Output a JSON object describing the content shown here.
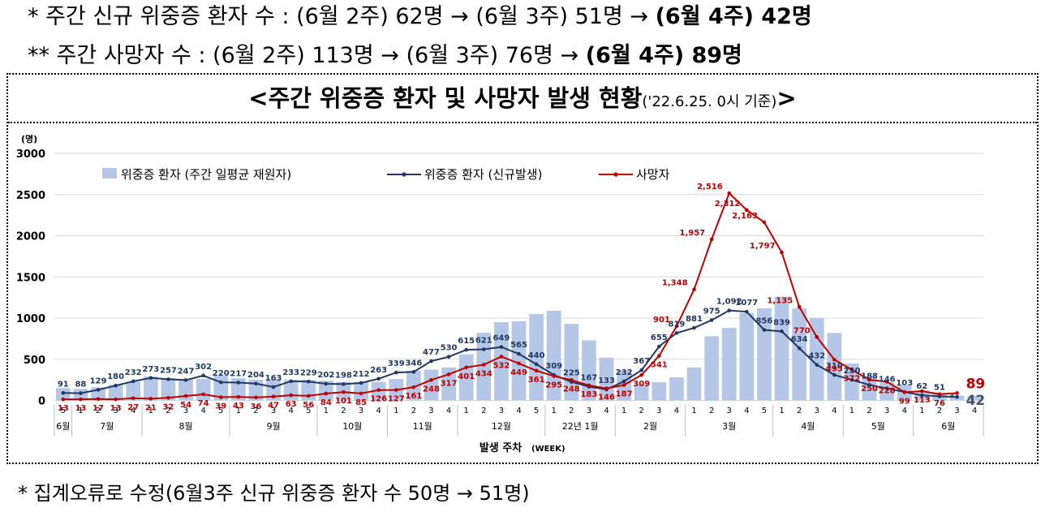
{
  "header": {
    "line1_prefix": "* 주간 신규 위중증 환자 수 : (6월 2주) 62명 → (6월 3주) 51명 → ",
    "line1_bold": "(6월 4주) 42명",
    "line2_prefix": "** 주간 사망자 수 : (6월 2주) 113명 → (6월 3주) 76명 → ",
    "line2_bold": "(6월 4주) 89명"
  },
  "box_title": {
    "main": "<주간 위중증 환자 및 사망자 발생 현황",
    "sub": "('22.6.25. 0시 기준)",
    "end": ">"
  },
  "footnote": "* 집계오류로 수정(6월3주 신규 위중증 환자 수 50명 → 51명)",
  "colors": {
    "bar": "#b4c7e7",
    "severe_line": "#1f3864",
    "death_line": "#c00000",
    "title_last_severe": "#44546a"
  },
  "chart_data": {
    "type": "bar+line",
    "title": "주간 위중증 환자 및 사망자 발생 현황",
    "ylabel": "(명)",
    "xlabel": "발생 주차",
    "xlabel_suffix": "(WEEK)",
    "ylim": [
      0,
      3000
    ],
    "yticks": [
      0,
      500,
      1000,
      1500,
      2000,
      2500,
      3000
    ],
    "legend": {
      "bar": "위중증 환자 (주간 일평균 재원자)",
      "severe": "위중증 환자 (신규발생)",
      "death": "사망자"
    },
    "week_labels": [
      "5",
      "1",
      "2",
      "3",
      "4",
      "1",
      "2",
      "3",
      "4",
      "5",
      "1",
      "2",
      "3",
      "4",
      "5",
      "1",
      "2",
      "3",
      "4",
      "1",
      "2",
      "3",
      "4",
      "1",
      "2",
      "3",
      "4",
      "5",
      "1",
      "2",
      "3",
      "4",
      "1",
      "2",
      "3",
      "4",
      "1",
      "2",
      "3",
      "4",
      "5",
      "1",
      "2",
      "3",
      "4",
      "1",
      "2",
      "3",
      "4",
      "1",
      "2",
      "3",
      "4"
    ],
    "months": [
      {
        "label": "6월",
        "start": 0,
        "end": 0
      },
      {
        "label": "7월",
        "start": 1,
        "end": 4
      },
      {
        "label": "8월",
        "start": 5,
        "end": 9
      },
      {
        "label": "9월",
        "start": 10,
        "end": 14
      },
      {
        "label": "10월",
        "start": 15,
        "end": 18
      },
      {
        "label": "11월",
        "start": 19,
        "end": 22
      },
      {
        "label": "12월",
        "start": 23,
        "end": 27
      },
      {
        "label": "22년 1월",
        "start": 28,
        "end": 31
      },
      {
        "label": "2월",
        "start": 32,
        "end": 35
      },
      {
        "label": "3월",
        "start": 36,
        "end": 40
      },
      {
        "label": "4월",
        "start": 41,
        "end": 44
      },
      {
        "label": "5월",
        "start": 45,
        "end": 48
      },
      {
        "label": "6월",
        "start": 49,
        "end": 52
      }
    ],
    "series": [
      {
        "name": "위중증 환자 (주간 일평균 재원자)",
        "kind": "bar",
        "values": [
          150,
          140,
          160,
          190,
          230,
          290,
          270,
          260,
          260,
          300,
          270,
          250,
          260,
          250,
          250,
          240,
          225,
          225,
          225,
          260,
          360,
          375,
          400,
          560,
          820,
          950,
          960,
          1050,
          1090,
          930,
          730,
          520,
          360,
          200,
          220,
          280,
          400,
          780,
          880,
          1060,
          1120,
          1260,
          1120,
          1000,
          820,
          450,
          300,
          220,
          180,
          120,
          90,
          60,
          55
        ]
      },
      {
        "name": "위중증 환자 (신규발생)",
        "kind": "line",
        "values": [
          91,
          88,
          129,
          180,
          232,
          273,
          257,
          247,
          302,
          220,
          217,
          204,
          163,
          233,
          229,
          202,
          198,
          212,
          263,
          339,
          346,
          477,
          530,
          615,
          621,
          649,
          565,
          440,
          309,
          225,
          167,
          133,
          232,
          367,
          655,
          819,
          881,
          975,
          1092,
          1077,
          856,
          839,
          634,
          432,
          310,
          250,
          188,
          146,
          103,
          62,
          51,
          42,
          null
        ],
        "labels": [
          "91",
          "88",
          "129",
          "180",
          "232",
          "273",
          "257",
          "247",
          "302",
          "220",
          "217",
          "204",
          "163",
          "233",
          "229",
          "202",
          "198",
          "212",
          "263",
          "339",
          "346",
          "477",
          "530",
          "615",
          "621",
          "649",
          "565",
          "440",
          "309",
          "225",
          "167",
          "133",
          "232",
          "367",
          "655",
          "819",
          "881",
          "975",
          "1,092",
          "1077",
          "856",
          "839",
          "634",
          "432",
          "310",
          "250",
          "188",
          "146",
          "103",
          "62",
          "51",
          "42",
          ""
        ]
      },
      {
        "name": "사망자",
        "kind": "line",
        "values": [
          13,
          13,
          17,
          13,
          27,
          21,
          32,
          54,
          74,
          39,
          43,
          36,
          47,
          63,
          56,
          84,
          101,
          85,
          126,
          127,
          161,
          248,
          317,
          401,
          434,
          532,
          449,
          361,
          295,
          248,
          183,
          146,
          187,
          309,
          541,
          901,
          1348,
          1957,
          2516,
          2312,
          2163,
          1797,
          1135,
          770,
          495,
          372,
          250,
          228,
          99,
          113,
          76,
          89,
          null
        ],
        "labels": [
          "13",
          "13",
          "17",
          "13",
          "27",
          "21",
          "32",
          "54",
          "74",
          "39",
          "43",
          "36",
          "47",
          "63",
          "56",
          "84",
          "101",
          "85",
          "126",
          "127",
          "161",
          "248",
          "317",
          "401",
          "434",
          "532",
          "449",
          "361",
          "295",
          "248",
          "183",
          "146",
          "187",
          "309",
          "541",
          "901",
          "1,348",
          "1,957",
          "2,516",
          "2,312",
          "2,163",
          "1,797",
          "1,135",
          "770",
          "495",
          "372",
          "250",
          "228",
          "99",
          "113",
          "76",
          "89",
          ""
        ]
      }
    ],
    "annotations": {
      "asterisk": "*",
      "last_death": "89",
      "last_severe": "42"
    }
  }
}
